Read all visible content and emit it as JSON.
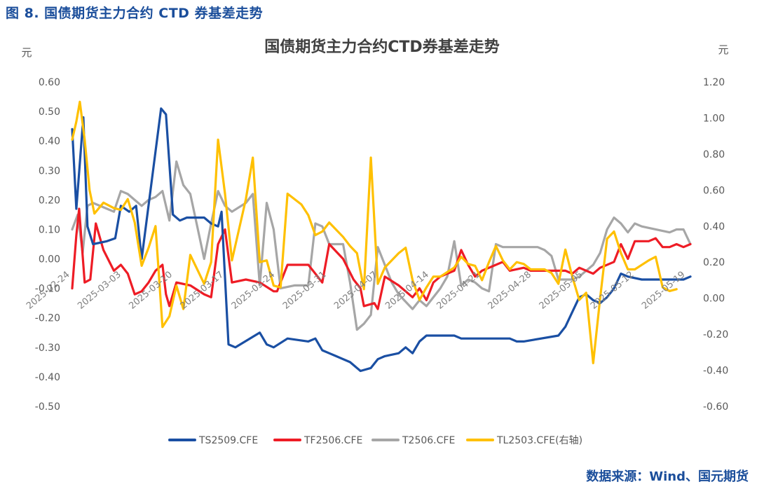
{
  "figure_caption": "图 8. 国债期货主力合约 CTD 券基差走势",
  "source_note": "数据来源：Wind、国元期货",
  "colors": {
    "caption": "#1b4e9b",
    "TS": "#1a4fa3",
    "TF": "#ee1c25",
    "T": "#a6a6a6",
    "TL": "#ffc000",
    "text": "#595959"
  },
  "chart_data": {
    "type": "line",
    "title": "国债期货主力合约CTD券基差走势",
    "ylabel_left": "元",
    "ylabel_right": "元",
    "ylim_left": [
      -0.5,
      0.6
    ],
    "ylim_right": [
      -0.6,
      1.2
    ],
    "yticks_left": [
      "0.60",
      "0.50",
      "0.40",
      "0.30",
      "0.20",
      "0.10",
      "0.00",
      "-0.10",
      "-0.20",
      "-0.30",
      "-0.40",
      "-0.50"
    ],
    "yticks_right": [
      "1.20",
      "1.00",
      "0.80",
      "0.60",
      "0.40",
      "0.20",
      "0.00",
      "-0.20",
      "-0.40",
      "-0.60"
    ],
    "x_tick_labels": [
      "2025-02-24",
      "2025-03-03",
      "2025-03-10",
      "2025-03-17",
      "2025-03-24",
      "2025-03-31",
      "2025-04-07",
      "2025-04-14",
      "2025-04-21",
      "2025-04-28",
      "2025-05-05",
      "2025-05-12",
      "2025-05-19"
    ],
    "grid": false,
    "legend_position": "bottom",
    "series": [
      {
        "name": "TS2509.CFE",
        "axis": "left",
        "points": [
          [
            0,
            0.44
          ],
          [
            0.6,
            0.17
          ],
          [
            1.6,
            0.48
          ],
          [
            2.2,
            0.11
          ],
          [
            3,
            0.05
          ],
          [
            5,
            0.06
          ],
          [
            6.2,
            0.07
          ],
          [
            7,
            0.18
          ],
          [
            8.2,
            0.16
          ],
          [
            9.2,
            0.18
          ],
          [
            10,
            0.0
          ],
          [
            12.8,
            0.51
          ],
          [
            13.5,
            0.49
          ],
          [
            14.5,
            0.15
          ],
          [
            15.5,
            0.13
          ],
          [
            16.5,
            0.14
          ],
          [
            19,
            0.14
          ],
          [
            20,
            0.12
          ],
          [
            21,
            0.11
          ],
          [
            21.5,
            0.16
          ],
          [
            22.5,
            -0.29
          ],
          [
            23.5,
            -0.3
          ],
          [
            27,
            -0.25
          ],
          [
            28,
            -0.29
          ],
          [
            29,
            -0.3
          ],
          [
            31,
            -0.27
          ],
          [
            34,
            -0.28
          ],
          [
            35,
            -0.27
          ],
          [
            36,
            -0.31
          ],
          [
            37,
            -0.32
          ],
          [
            38,
            -0.33
          ],
          [
            40,
            -0.35
          ],
          [
            41.5,
            -0.38
          ],
          [
            43,
            -0.37
          ],
          [
            44,
            -0.34
          ],
          [
            45,
            -0.33
          ],
          [
            47,
            -0.32
          ],
          [
            48,
            -0.3
          ],
          [
            49,
            -0.32
          ],
          [
            50,
            -0.28
          ],
          [
            51,
            -0.26
          ],
          [
            54,
            -0.26
          ],
          [
            55,
            -0.26
          ],
          [
            56,
            -0.27
          ],
          [
            58,
            -0.27
          ],
          [
            59,
            -0.27
          ],
          [
            62,
            -0.27
          ],
          [
            63,
            -0.27
          ],
          [
            64,
            -0.28
          ],
          [
            65,
            -0.28
          ],
          [
            70,
            -0.26
          ],
          [
            71,
            -0.23
          ],
          [
            72,
            -0.18
          ],
          [
            73,
            -0.13
          ],
          [
            74,
            -0.12
          ],
          [
            75,
            -0.14
          ],
          [
            76,
            -0.15
          ],
          [
            77,
            -0.13
          ],
          [
            78,
            -0.1
          ],
          [
            79,
            -0.05
          ],
          [
            80,
            -0.06
          ],
          [
            82,
            -0.07
          ],
          [
            86,
            -0.07
          ],
          [
            87,
            -0.07
          ],
          [
            88,
            -0.07
          ],
          [
            89,
            -0.06
          ]
        ]
      },
      {
        "name": "TF2506.CFE",
        "axis": "left",
        "points": [
          [
            0,
            -0.1
          ],
          [
            0.6,
            0.08
          ],
          [
            1,
            0.17
          ],
          [
            1.8,
            -0.08
          ],
          [
            2.6,
            -0.07
          ],
          [
            3.4,
            0.12
          ],
          [
            4.5,
            0.03
          ],
          [
            6,
            -0.04
          ],
          [
            7,
            -0.02
          ],
          [
            8,
            -0.05
          ],
          [
            9,
            -0.12
          ],
          [
            10,
            -0.11
          ],
          [
            11,
            -0.08
          ],
          [
            12,
            -0.04
          ],
          [
            13,
            -0.02
          ],
          [
            13.5,
            -0.12
          ],
          [
            14,
            -0.16
          ],
          [
            15,
            -0.08
          ],
          [
            17,
            -0.09
          ],
          [
            19,
            -0.12
          ],
          [
            20,
            -0.13
          ],
          [
            21,
            0.05
          ],
          [
            22,
            0.1
          ],
          [
            23,
            -0.08
          ],
          [
            25,
            -0.07
          ],
          [
            27,
            -0.08
          ],
          [
            29,
            -0.11
          ],
          [
            29.5,
            -0.11
          ],
          [
            30,
            -0.08
          ],
          [
            31,
            -0.02
          ],
          [
            33,
            -0.02
          ],
          [
            34,
            -0.02
          ],
          [
            35,
            -0.05
          ],
          [
            36,
            -0.08
          ],
          [
            37,
            0.05
          ],
          [
            39,
            0.0
          ],
          [
            40.5,
            -0.07
          ],
          [
            41.5,
            -0.1
          ],
          [
            42,
            -0.16
          ],
          [
            43.5,
            -0.15
          ],
          [
            44,
            -0.17
          ],
          [
            45,
            -0.06
          ],
          [
            47,
            -0.09
          ],
          [
            49,
            -0.13
          ],
          [
            50,
            -0.1
          ],
          [
            51,
            -0.14
          ],
          [
            52,
            -0.08
          ],
          [
            53,
            -0.06
          ],
          [
            55,
            -0.04
          ],
          [
            56,
            0.03
          ],
          [
            57,
            -0.02
          ],
          [
            58,
            -0.06
          ],
          [
            59,
            -0.04
          ],
          [
            61,
            -0.02
          ],
          [
            62,
            -0.01
          ],
          [
            63,
            -0.04
          ],
          [
            65,
            -0.03
          ],
          [
            66,
            -0.04
          ],
          [
            70,
            -0.04
          ],
          [
            71,
            -0.04
          ],
          [
            72,
            -0.05
          ],
          [
            73,
            -0.03
          ],
          [
            75,
            -0.05
          ],
          [
            76,
            -0.03
          ],
          [
            78,
            -0.01
          ],
          [
            79,
            0.05
          ],
          [
            80,
            0.0
          ],
          [
            81,
            0.06
          ],
          [
            83,
            0.06
          ],
          [
            84,
            0.07
          ],
          [
            85,
            0.04
          ],
          [
            86,
            0.04
          ],
          [
            87,
            0.05
          ],
          [
            88,
            0.04
          ],
          [
            89,
            0.05
          ]
        ]
      },
      {
        "name": "T2506.CFE",
        "axis": "left",
        "points": [
          [
            0,
            0.1
          ],
          [
            0.8,
            0.15
          ],
          [
            1.5,
            0.02
          ],
          [
            2.2,
            0.18
          ],
          [
            3,
            0.19
          ],
          [
            5,
            0.17
          ],
          [
            6,
            0.16
          ],
          [
            7,
            0.23
          ],
          [
            8,
            0.22
          ],
          [
            9,
            0.2
          ],
          [
            10,
            0.18
          ],
          [
            11,
            0.2
          ],
          [
            12,
            0.21
          ],
          [
            13,
            0.23
          ],
          [
            14,
            0.13
          ],
          [
            15,
            0.33
          ],
          [
            16,
            0.25
          ],
          [
            17,
            0.22
          ],
          [
            19,
            0.0
          ],
          [
            20,
            0.12
          ],
          [
            21,
            0.23
          ],
          [
            22,
            0.18
          ],
          [
            23,
            0.16
          ],
          [
            25,
            0.19
          ],
          [
            26,
            0.22
          ],
          [
            27,
            -0.09
          ],
          [
            28,
            0.19
          ],
          [
            29,
            0.1
          ],
          [
            30,
            -0.1
          ],
          [
            32,
            -0.09
          ],
          [
            34,
            -0.09
          ],
          [
            35,
            0.12
          ],
          [
            36,
            0.11
          ],
          [
            37,
            0.05
          ],
          [
            39,
            0.05
          ],
          [
            40,
            -0.08
          ],
          [
            41,
            -0.24
          ],
          [
            42,
            -0.22
          ],
          [
            43,
            -0.19
          ],
          [
            44,
            0.04
          ],
          [
            45,
            -0.02
          ],
          [
            46,
            -0.08
          ],
          [
            47,
            -0.12
          ],
          [
            49,
            -0.17
          ],
          [
            50,
            -0.14
          ],
          [
            51,
            -0.16
          ],
          [
            53,
            -0.1
          ],
          [
            54,
            -0.06
          ],
          [
            55,
            0.06
          ],
          [
            56,
            -0.09
          ],
          [
            57,
            -0.07
          ],
          [
            58,
            -0.08
          ],
          [
            59,
            -0.1
          ],
          [
            60,
            -0.11
          ],
          [
            61,
            0.05
          ],
          [
            62,
            0.04
          ],
          [
            66,
            0.04
          ],
          [
            67,
            0.04
          ],
          [
            68,
            0.03
          ],
          [
            69,
            0.01
          ],
          [
            70,
            -0.07
          ],
          [
            72,
            -0.07
          ],
          [
            73,
            -0.06
          ],
          [
            75,
            -0.02
          ],
          [
            76,
            0.02
          ],
          [
            77,
            0.1
          ],
          [
            78,
            0.14
          ],
          [
            79,
            0.12
          ],
          [
            80,
            0.09
          ],
          [
            81,
            0.12
          ],
          [
            82,
            0.11
          ],
          [
            86,
            0.09
          ],
          [
            87,
            0.1
          ],
          [
            88,
            0.1
          ],
          [
            89,
            0.05
          ]
        ]
      },
      {
        "name": "TL2503.CFE(右轴)",
        "axis": "right",
        "points": [
          [
            0,
            0.88
          ],
          [
            0.6,
            0.98
          ],
          [
            1.1,
            1.09
          ],
          [
            1.8,
            0.88
          ],
          [
            2.5,
            0.6
          ],
          [
            3.2,
            0.47
          ],
          [
            4.5,
            0.53
          ],
          [
            6,
            0.5
          ],
          [
            7,
            0.49
          ],
          [
            8,
            0.55
          ],
          [
            9,
            0.42
          ],
          [
            10,
            0.18
          ],
          [
            11,
            0.28
          ],
          [
            12,
            0.4
          ],
          [
            13,
            -0.16
          ],
          [
            14,
            -0.1
          ],
          [
            15,
            0.07
          ],
          [
            16,
            -0.06
          ],
          [
            17,
            0.24
          ],
          [
            19,
            0.08
          ],
          [
            20,
            0.2
          ],
          [
            21,
            0.88
          ],
          [
            22,
            0.58
          ],
          [
            23,
            0.21
          ],
          [
            25,
            0.55
          ],
          [
            26,
            0.78
          ],
          [
            27,
            0.2
          ],
          [
            28,
            0.21
          ],
          [
            29,
            0.07
          ],
          [
            30,
            0.06
          ],
          [
            31,
            0.58
          ],
          [
            33,
            0.52
          ],
          [
            34,
            0.46
          ],
          [
            35,
            0.35
          ],
          [
            36,
            0.37
          ],
          [
            37,
            0.42
          ],
          [
            39,
            0.34
          ],
          [
            40,
            0.29
          ],
          [
            41,
            0.25
          ],
          [
            42,
            0.05
          ],
          [
            43,
            0.78
          ],
          [
            44,
            0.08
          ],
          [
            45,
            0.17
          ],
          [
            47,
            0.25
          ],
          [
            48,
            0.28
          ],
          [
            49,
            0.1
          ],
          [
            50,
            -0.01
          ],
          [
            51,
            0.06
          ],
          [
            52,
            0.12
          ],
          [
            53,
            0.12
          ],
          [
            55,
            0.17
          ],
          [
            56,
            0.23
          ],
          [
            57,
            0.19
          ],
          [
            58,
            0.18
          ],
          [
            59,
            0.1
          ],
          [
            60,
            0.2
          ],
          [
            61,
            0.29
          ],
          [
            62,
            0.21
          ],
          [
            63,
            0.16
          ],
          [
            64,
            0.2
          ],
          [
            65,
            0.19
          ],
          [
            66,
            0.16
          ],
          [
            68,
            0.16
          ],
          [
            69,
            0.14
          ],
          [
            70,
            0.08
          ],
          [
            71,
            0.27
          ],
          [
            72,
            0.12
          ],
          [
            73,
            -0.01
          ],
          [
            74,
            0.03
          ],
          [
            75,
            -0.36
          ],
          [
            76,
            0.0
          ],
          [
            77,
            0.33
          ],
          [
            78,
            0.37
          ],
          [
            79,
            0.25
          ],
          [
            80,
            0.16
          ],
          [
            81,
            0.16
          ],
          [
            83,
            0.21
          ],
          [
            84,
            0.23
          ],
          [
            85,
            0.06
          ],
          [
            86,
            0.04
          ],
          [
            87,
            0.05
          ]
        ]
      }
    ]
  }
}
